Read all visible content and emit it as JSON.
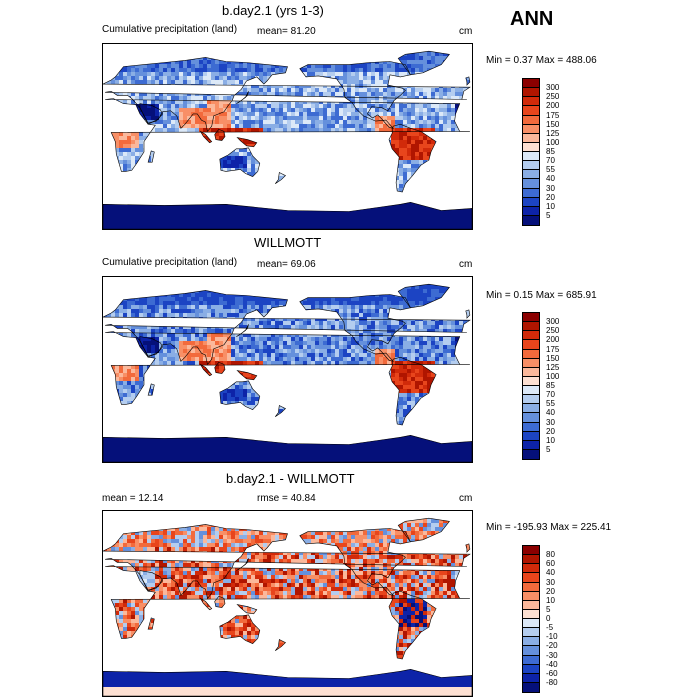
{
  "page_title": "ANN",
  "panels": [
    {
      "title": "b.day2.1 (yrs 1-3)",
      "left_label": "Cumulative precipitation (land)",
      "center_label": "mean=  81.20",
      "units": "cm",
      "minmax": "Min =   0.37 Max = 488.06",
      "colorbar_labels": [
        "300",
        "250",
        "200",
        "175",
        "150",
        "125",
        "100",
        "85",
        "70",
        "55",
        "40",
        "30",
        "20",
        "10",
        "5"
      ],
      "colors": [
        "#8b0000",
        "#b01500",
        "#d12a0a",
        "#e8451c",
        "#f26a3c",
        "#f88f66",
        "#fbb89b",
        "#fde0d2",
        "#dce9f8",
        "#b4cdef",
        "#8aaee5",
        "#6590dc",
        "#3d6bd2",
        "#1c44c3",
        "#0d23a8",
        "#05107a"
      ],
      "field": "precip"
    },
    {
      "title": "WILLMOTT",
      "left_label": "Cumulative precipitation (land)",
      "center_label": "mean=  69.06",
      "units": "cm",
      "minmax": "Min =   0.15 Max = 685.91",
      "colorbar_labels": [
        "300",
        "250",
        "200",
        "175",
        "150",
        "125",
        "100",
        "85",
        "70",
        "55",
        "40",
        "30",
        "20",
        "10",
        "5"
      ],
      "colors": [
        "#8b0000",
        "#b01500",
        "#d12a0a",
        "#e8451c",
        "#f26a3c",
        "#f88f66",
        "#fbb89b",
        "#fde0d2",
        "#dce9f8",
        "#b4cdef",
        "#8aaee5",
        "#6590dc",
        "#3d6bd2",
        "#1c44c3",
        "#0d23a8",
        "#05107a"
      ],
      "field": "precip"
    },
    {
      "title": "b.day2.1 - WILLMOTT",
      "left_label": "mean =  12.14",
      "center_label": "rmse =  40.84",
      "units": "cm",
      "minmax": "Min = -195.93 Max = 225.41",
      "colorbar_labels": [
        "80",
        "60",
        "40",
        "30",
        "20",
        "10",
        "5",
        "0",
        "-5",
        "-10",
        "-20",
        "-30",
        "-40",
        "-60",
        "-80"
      ],
      "colors": [
        "#8b0000",
        "#b01500",
        "#d12a0a",
        "#e8451c",
        "#f26a3c",
        "#f88f66",
        "#fbb89b",
        "#fde0d2",
        "#dce9f8",
        "#b4cdef",
        "#8aaee5",
        "#6590dc",
        "#3d6bd2",
        "#1c44c3",
        "#0d23a8",
        "#05107a"
      ],
      "field": "diff"
    }
  ]
}
